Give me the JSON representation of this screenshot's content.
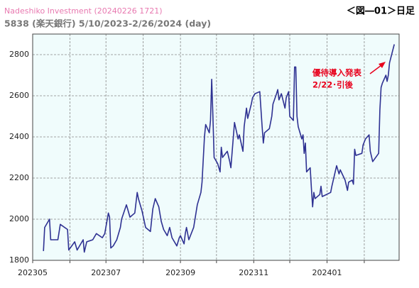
{
  "chart_data": {
    "type": "line",
    "title": "Nadeshiko Investment  (20240226 1721)",
    "subtitle": "5838 (楽天銀行) 5/10/2023-2/26/2024 (day)",
    "figure_label": "＜図―01＞日足",
    "annotation": [
      "優待導入発表",
      "2/22･引後"
    ],
    "annotation_color": "#e8001c",
    "background": "#f0fcfc",
    "grid": true,
    "xlim": [
      "2023-05-01",
      "2024-03-01"
    ],
    "xticks": [
      {
        "value": "2023-05-01",
        "label": "202305"
      },
      {
        "value": "2023-06-01",
        "label": null
      },
      {
        "value": "2023-07-01",
        "label": "202307"
      },
      {
        "value": "2023-08-01",
        "label": null
      },
      {
        "value": "2023-09-01",
        "label": "202309"
      },
      {
        "value": "2023-10-01",
        "label": null
      },
      {
        "value": "2023-11-01",
        "label": "202311"
      },
      {
        "value": "2023-12-01",
        "label": null
      },
      {
        "value": "2024-01-01",
        "label": "202401"
      },
      {
        "value": "2024-02-01",
        "label": null
      }
    ],
    "ylim": [
      1800,
      2900
    ],
    "yticks": [
      1800,
      2000,
      2200,
      2400,
      2600,
      2800
    ],
    "x": [
      "2023-05-10",
      "2023-05-11",
      "2023-05-15",
      "2023-05-16",
      "2023-05-22",
      "2023-05-24",
      "2023-05-30",
      "2023-05-31",
      "2023-06-05",
      "2023-06-07",
      "2023-06-12",
      "2023-06-13",
      "2023-06-15",
      "2023-06-20",
      "2023-06-23",
      "2023-06-28",
      "2023-06-30",
      "2023-07-03",
      "2023-07-04",
      "2023-07-05",
      "2023-07-07",
      "2023-07-10",
      "2023-07-13",
      "2023-07-14",
      "2023-07-18",
      "2023-07-19",
      "2023-07-21",
      "2023-07-25",
      "2023-07-27",
      "2023-07-28",
      "2023-07-31",
      "2023-08-03",
      "2023-08-07",
      "2023-08-09",
      "2023-08-11",
      "2023-08-14",
      "2023-08-16",
      "2023-08-18",
      "2023-08-21",
      "2023-08-23",
      "2023-08-25",
      "2023-08-29",
      "2023-08-31",
      "2023-09-01",
      "2023-09-04",
      "2023-09-05",
      "2023-09-06",
      "2023-09-08",
      "2023-09-12",
      "2023-09-15",
      "2023-09-18",
      "2023-09-19",
      "2023-09-21",
      "2023-09-22",
      "2023-09-25",
      "2023-09-26",
      "2023-09-27",
      "2023-09-28",
      "2023-09-29",
      "2023-10-02",
      "2023-10-04",
      "2023-10-05",
      "2023-10-06",
      "2023-10-10",
      "2023-10-12",
      "2023-10-13",
      "2023-10-16",
      "2023-10-19",
      "2023-10-20",
      "2023-10-23",
      "2023-10-24",
      "2023-10-26",
      "2023-10-27",
      "2023-10-30",
      "2023-10-31",
      "2023-11-02",
      "2023-11-06",
      "2023-11-08",
      "2023-11-09",
      "2023-11-10",
      "2023-11-14",
      "2023-11-16",
      "2023-11-17",
      "2023-11-20",
      "2023-11-21",
      "2023-11-22",
      "2023-11-24",
      "2023-11-27",
      "2023-11-28",
      "2023-11-30",
      "2023-12-01",
      "2023-12-04",
      "2023-12-05",
      "2023-12-06",
      "2023-12-07",
      "2023-12-08",
      "2023-12-11",
      "2023-12-12",
      "2023-12-13",
      "2023-12-14",
      "2023-12-15",
      "2023-12-18",
      "2023-12-19",
      "2023-12-20",
      "2023-12-21",
      "2023-12-22",
      "2023-12-26",
      "2023-12-27",
      "2023-12-28",
      "2024-01-04",
      "2024-01-05",
      "2024-01-09",
      "2024-01-11",
      "2024-01-12",
      "2024-01-16",
      "2024-01-18",
      "2024-01-19",
      "2024-01-22",
      "2024-01-23",
      "2024-01-24",
      "2024-01-25",
      "2024-01-30",
      "2024-01-31",
      "2024-02-02",
      "2024-02-05",
      "2024-02-06",
      "2024-02-08",
      "2024-02-13",
      "2024-02-14",
      "2024-02-15",
      "2024-02-16",
      "2024-02-19",
      "2024-02-20",
      "2024-02-21",
      "2024-02-22",
      "2024-02-26"
    ],
    "series": [
      {
        "name": "5838",
        "color": "#2e3192",
        "values": [
          1845,
          1960,
          2000,
          1900,
          1900,
          1975,
          1950,
          1850,
          1890,
          1850,
          1900,
          1840,
          1890,
          1900,
          1930,
          1910,
          1930,
          2030,
          2010,
          1860,
          1870,
          1900,
          1960,
          2000,
          2070,
          2050,
          2010,
          2030,
          2130,
          2100,
          2040,
          1960,
          1940,
          2050,
          2100,
          2060,
          1990,
          1950,
          1920,
          1960,
          1910,
          1870,
          1910,
          1920,
          1880,
          1930,
          1960,
          1900,
          1960,
          2070,
          2130,
          2180,
          2400,
          2460,
          2420,
          2480,
          2680,
          2500,
          2300,
          2270,
          2230,
          2350,
          2300,
          2330,
          2280,
          2250,
          2470,
          2390,
          2410,
          2330,
          2450,
          2540,
          2490,
          2560,
          2590,
          2610,
          2620,
          2450,
          2370,
          2420,
          2440,
          2500,
          2560,
          2610,
          2630,
          2580,
          2610,
          2540,
          2590,
          2620,
          2500,
          2480,
          2740,
          2740,
          2500,
          2450,
          2390,
          2410,
          2320,
          2370,
          2230,
          2250,
          2150,
          2060,
          2130,
          2100,
          2120,
          2160,
          2110,
          2130,
          2160,
          2260,
          2220,
          2240,
          2190,
          2140,
          2180,
          2190,
          2170,
          2340,
          2310,
          2320,
          2360,
          2390,
          2410,
          2330,
          2280,
          2320,
          2530,
          2640,
          2660,
          2700,
          2670,
          2700,
          2760,
          2850
        ]
      }
    ]
  }
}
